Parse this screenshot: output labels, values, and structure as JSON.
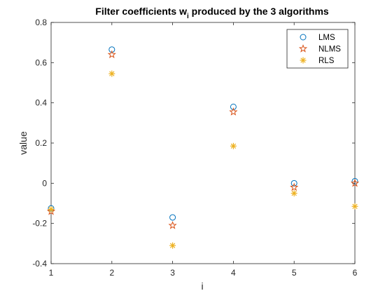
{
  "chart_data": {
    "type": "scatter",
    "title_main": "Filter coefficients w",
    "title_sub": "i",
    "title_rest": " produced by the 3 algorithms",
    "xlabel": "i",
    "ylabel": "value",
    "xlim": [
      1,
      6
    ],
    "ylim": [
      -0.4,
      0.8
    ],
    "x": [
      1,
      2,
      3,
      4,
      5,
      6
    ],
    "x_ticks": [
      "1",
      "2",
      "3",
      "4",
      "5",
      "6"
    ],
    "y_ticks": [
      {
        "value": 0.8,
        "label": "0.8"
      },
      {
        "value": 0.6,
        "label": "0.6"
      },
      {
        "value": 0.4,
        "label": "0.4"
      },
      {
        "value": 0.2,
        "label": "0.2"
      },
      {
        "value": 0.0,
        "label": "0"
      },
      {
        "value": -0.2,
        "label": "-0.2"
      },
      {
        "value": -0.4,
        "label": "-0.4"
      }
    ],
    "grid": false,
    "legend_position": "top-right",
    "series": [
      {
        "name": "LMS",
        "marker": "circle",
        "color": "#0072BD",
        "values": [
          -0.125,
          0.665,
          -0.17,
          0.38,
          0.0,
          0.01
        ]
      },
      {
        "name": "NLMS",
        "marker": "pentagram",
        "color": "#D95319",
        "values": [
          -0.14,
          0.64,
          -0.21,
          0.355,
          -0.02,
          0.0
        ]
      },
      {
        "name": "RLS",
        "marker": "asterisk",
        "color": "#EDB120",
        "values": [
          -0.13,
          0.545,
          -0.31,
          0.185,
          -0.05,
          -0.115
        ]
      }
    ]
  }
}
